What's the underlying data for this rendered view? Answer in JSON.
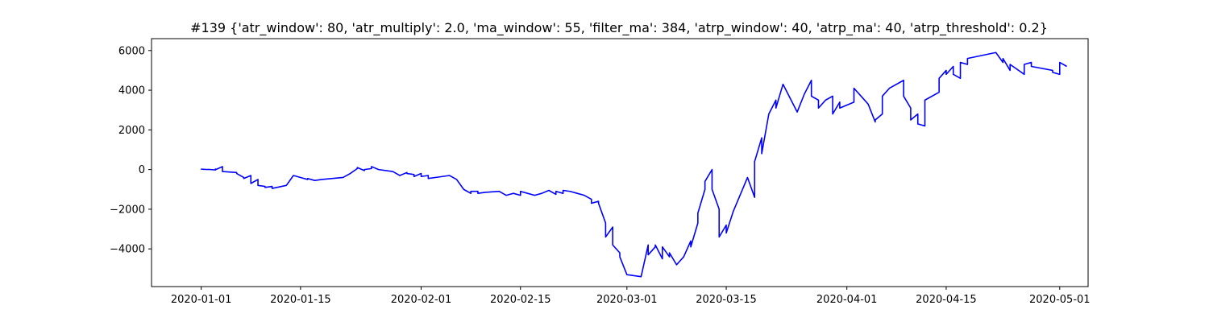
{
  "chart_data": {
    "type": "line",
    "title": "#139 {'atr_window': 80, 'atr_multiply': 2.0, 'ma_window': 55, 'filter_ma': 384, 'atrp_window': 40, 'atrp_ma': 40, 'atrp_threshold': 0.2}",
    "xlabel": "",
    "ylabel": "",
    "grid": false,
    "legend": "none",
    "xlim": [
      "2019-12-25",
      "2020-05-05"
    ],
    "ylim": [
      -5900,
      6600
    ],
    "x_ticks": [
      "2020-01-01",
      "2020-01-15",
      "2020-02-01",
      "2020-02-15",
      "2020-03-01",
      "2020-03-15",
      "2020-04-01",
      "2020-04-15",
      "2020-05-01"
    ],
    "y_ticks": [
      -4000,
      -2000,
      0,
      2000,
      4000,
      6000
    ],
    "y_tick_labels": [
      "−4000",
      "−2000",
      "0",
      "2000",
      "4000",
      "6000"
    ],
    "series": [
      {
        "color": "#0000ff",
        "points": [
          [
            "2020-01-01",
            0
          ],
          [
            "2020-01-01",
            20
          ],
          [
            "2020-01-02",
            0
          ],
          [
            "2020-01-02",
            10
          ],
          [
            "2020-01-03",
            -20
          ],
          [
            "2020-01-03",
            30
          ],
          [
            "2020-01-03",
            -10
          ],
          [
            "2020-01-04",
            150
          ],
          [
            "2020-01-04",
            80
          ],
          [
            "2020-01-04",
            -100
          ],
          [
            "2020-01-06",
            -150
          ],
          [
            "2020-01-06",
            -200
          ],
          [
            "2020-01-07",
            -400
          ],
          [
            "2020-01-07",
            -450
          ],
          [
            "2020-01-08",
            -300
          ],
          [
            "2020-01-08",
            -700
          ],
          [
            "2020-01-09",
            -500
          ],
          [
            "2020-01-09",
            -800
          ],
          [
            "2020-01-10",
            -850
          ],
          [
            "2020-01-10",
            -900
          ],
          [
            "2020-01-11",
            -850
          ],
          [
            "2020-01-11",
            -950
          ],
          [
            "2020-01-13",
            -800
          ],
          [
            "2020-01-14",
            -300
          ],
          [
            "2020-01-15",
            -400
          ],
          [
            "2020-01-16",
            -500
          ],
          [
            "2020-01-16",
            -450
          ],
          [
            "2020-01-17",
            -550
          ],
          [
            "2020-01-18",
            -500
          ],
          [
            "2020-01-21",
            -400
          ],
          [
            "2020-01-22",
            -200
          ],
          [
            "2020-01-23",
            50
          ],
          [
            "2020-01-23",
            100
          ],
          [
            "2020-01-24",
            -50
          ],
          [
            "2020-01-24",
            0
          ],
          [
            "2020-01-25",
            50
          ],
          [
            "2020-01-25",
            150
          ],
          [
            "2020-01-26",
            0
          ],
          [
            "2020-01-28",
            -100
          ],
          [
            "2020-01-29",
            -300
          ],
          [
            "2020-01-30",
            -150
          ],
          [
            "2020-01-30",
            -200
          ],
          [
            "2020-01-31",
            -250
          ],
          [
            "2020-01-31",
            -350
          ],
          [
            "2020-02-01",
            -200
          ],
          [
            "2020-02-01",
            -350
          ],
          [
            "2020-02-02",
            -300
          ],
          [
            "2020-02-02",
            -450
          ],
          [
            "2020-02-03",
            -400
          ],
          [
            "2020-02-05",
            -300
          ],
          [
            "2020-02-06",
            -500
          ],
          [
            "2020-02-07",
            -1000
          ],
          [
            "2020-02-08",
            -1200
          ],
          [
            "2020-02-08",
            -1100
          ],
          [
            "2020-02-09",
            -1100
          ],
          [
            "2020-02-09",
            -1200
          ],
          [
            "2020-02-10",
            -1150
          ],
          [
            "2020-02-12",
            -1100
          ],
          [
            "2020-02-13",
            -1300
          ],
          [
            "2020-02-14",
            -1200
          ],
          [
            "2020-02-15",
            -1300
          ],
          [
            "2020-02-15",
            -1100
          ],
          [
            "2020-02-16",
            -1200
          ],
          [
            "2020-02-17",
            -1300
          ],
          [
            "2020-02-18",
            -1200
          ],
          [
            "2020-02-19",
            -1050
          ],
          [
            "2020-02-20",
            -1250
          ],
          [
            "2020-02-20",
            -1100
          ],
          [
            "2020-02-21",
            -1200
          ],
          [
            "2020-02-21",
            -1050
          ],
          [
            "2020-02-22",
            -1100
          ],
          [
            "2020-02-23",
            -1200
          ],
          [
            "2020-02-24",
            -1300
          ],
          [
            "2020-02-25",
            -1500
          ],
          [
            "2020-02-25",
            -1700
          ],
          [
            "2020-02-26",
            -1600
          ],
          [
            "2020-02-26",
            -1700
          ],
          [
            "2020-02-27",
            -2700
          ],
          [
            "2020-02-27",
            -3400
          ],
          [
            "2020-02-28",
            -2900
          ],
          [
            "2020-02-28",
            -3800
          ],
          [
            "2020-02-29",
            -4200
          ],
          [
            "2020-02-29",
            -4400
          ],
          [
            "2020-03-01",
            -5300
          ],
          [
            "2020-03-03",
            -5400
          ],
          [
            "2020-03-04",
            -3800
          ],
          [
            "2020-03-04",
            -4300
          ],
          [
            "2020-03-05",
            -3900
          ],
          [
            "2020-03-05",
            -3800
          ],
          [
            "2020-03-06",
            -4500
          ],
          [
            "2020-03-06",
            -3900
          ],
          [
            "2020-03-07",
            -4400
          ],
          [
            "2020-03-07",
            -4200
          ],
          [
            "2020-03-08",
            -4800
          ],
          [
            "2020-03-09",
            -4400
          ],
          [
            "2020-03-10",
            -3600
          ],
          [
            "2020-03-10",
            -3900
          ],
          [
            "2020-03-11",
            -2700
          ],
          [
            "2020-03-11",
            -2200
          ],
          [
            "2020-03-12",
            -1000
          ],
          [
            "2020-03-12",
            -600
          ],
          [
            "2020-03-13",
            0
          ],
          [
            "2020-03-13",
            -1000
          ],
          [
            "2020-03-14",
            -2000
          ],
          [
            "2020-03-14",
            -3400
          ],
          [
            "2020-03-15",
            -2800
          ],
          [
            "2020-03-15",
            -3200
          ],
          [
            "2020-03-16",
            -2100
          ],
          [
            "2020-03-18",
            -400
          ],
          [
            "2020-03-19",
            -1400
          ],
          [
            "2020-03-19",
            400
          ],
          [
            "2020-03-20",
            1600
          ],
          [
            "2020-03-20",
            800
          ],
          [
            "2020-03-21",
            2800
          ],
          [
            "2020-03-22",
            3500
          ],
          [
            "2020-03-22",
            3100
          ],
          [
            "2020-03-23",
            4300
          ],
          [
            "2020-03-25",
            2900
          ],
          [
            "2020-03-26",
            3800
          ],
          [
            "2020-03-27",
            4500
          ],
          [
            "2020-03-27",
            3700
          ],
          [
            "2020-03-28",
            3500
          ],
          [
            "2020-03-28",
            3100
          ],
          [
            "2020-03-29",
            3500
          ],
          [
            "2020-03-30",
            3700
          ],
          [
            "2020-03-30",
            2800
          ],
          [
            "2020-03-31",
            3400
          ],
          [
            "2020-03-31",
            3100
          ],
          [
            "2020-04-02",
            3400
          ],
          [
            "2020-04-02",
            4100
          ],
          [
            "2020-04-03",
            3700
          ],
          [
            "2020-04-04",
            3300
          ],
          [
            "2020-04-05",
            2400
          ],
          [
            "2020-04-05",
            2500
          ],
          [
            "2020-04-06",
            2800
          ],
          [
            "2020-04-06",
            3700
          ],
          [
            "2020-04-07",
            4100
          ],
          [
            "2020-04-09",
            4500
          ],
          [
            "2020-04-09",
            3700
          ],
          [
            "2020-04-10",
            3100
          ],
          [
            "2020-04-10",
            2500
          ],
          [
            "2020-04-11",
            2800
          ],
          [
            "2020-04-11",
            2300
          ],
          [
            "2020-04-12",
            2200
          ],
          [
            "2020-04-12",
            3500
          ],
          [
            "2020-04-14",
            3900
          ],
          [
            "2020-04-14",
            4600
          ],
          [
            "2020-04-15",
            5000
          ],
          [
            "2020-04-15",
            4800
          ],
          [
            "2020-04-16",
            5200
          ],
          [
            "2020-04-16",
            4800
          ],
          [
            "2020-04-17",
            4600
          ],
          [
            "2020-04-17",
            5400
          ],
          [
            "2020-04-18",
            5300
          ],
          [
            "2020-04-18",
            5600
          ],
          [
            "2020-04-22",
            5900
          ],
          [
            "2020-04-23",
            5400
          ],
          [
            "2020-04-23",
            5600
          ],
          [
            "2020-04-24",
            5000
          ],
          [
            "2020-04-24",
            5300
          ],
          [
            "2020-04-26",
            4800
          ],
          [
            "2020-04-26",
            5300
          ],
          [
            "2020-04-27",
            5400
          ],
          [
            "2020-04-27",
            5200
          ],
          [
            "2020-04-30",
            5000
          ],
          [
            "2020-04-30",
            4900
          ],
          [
            "2020-05-01",
            4800
          ],
          [
            "2020-05-01",
            5400
          ],
          [
            "2020-05-02",
            5200
          ]
        ]
      }
    ]
  }
}
